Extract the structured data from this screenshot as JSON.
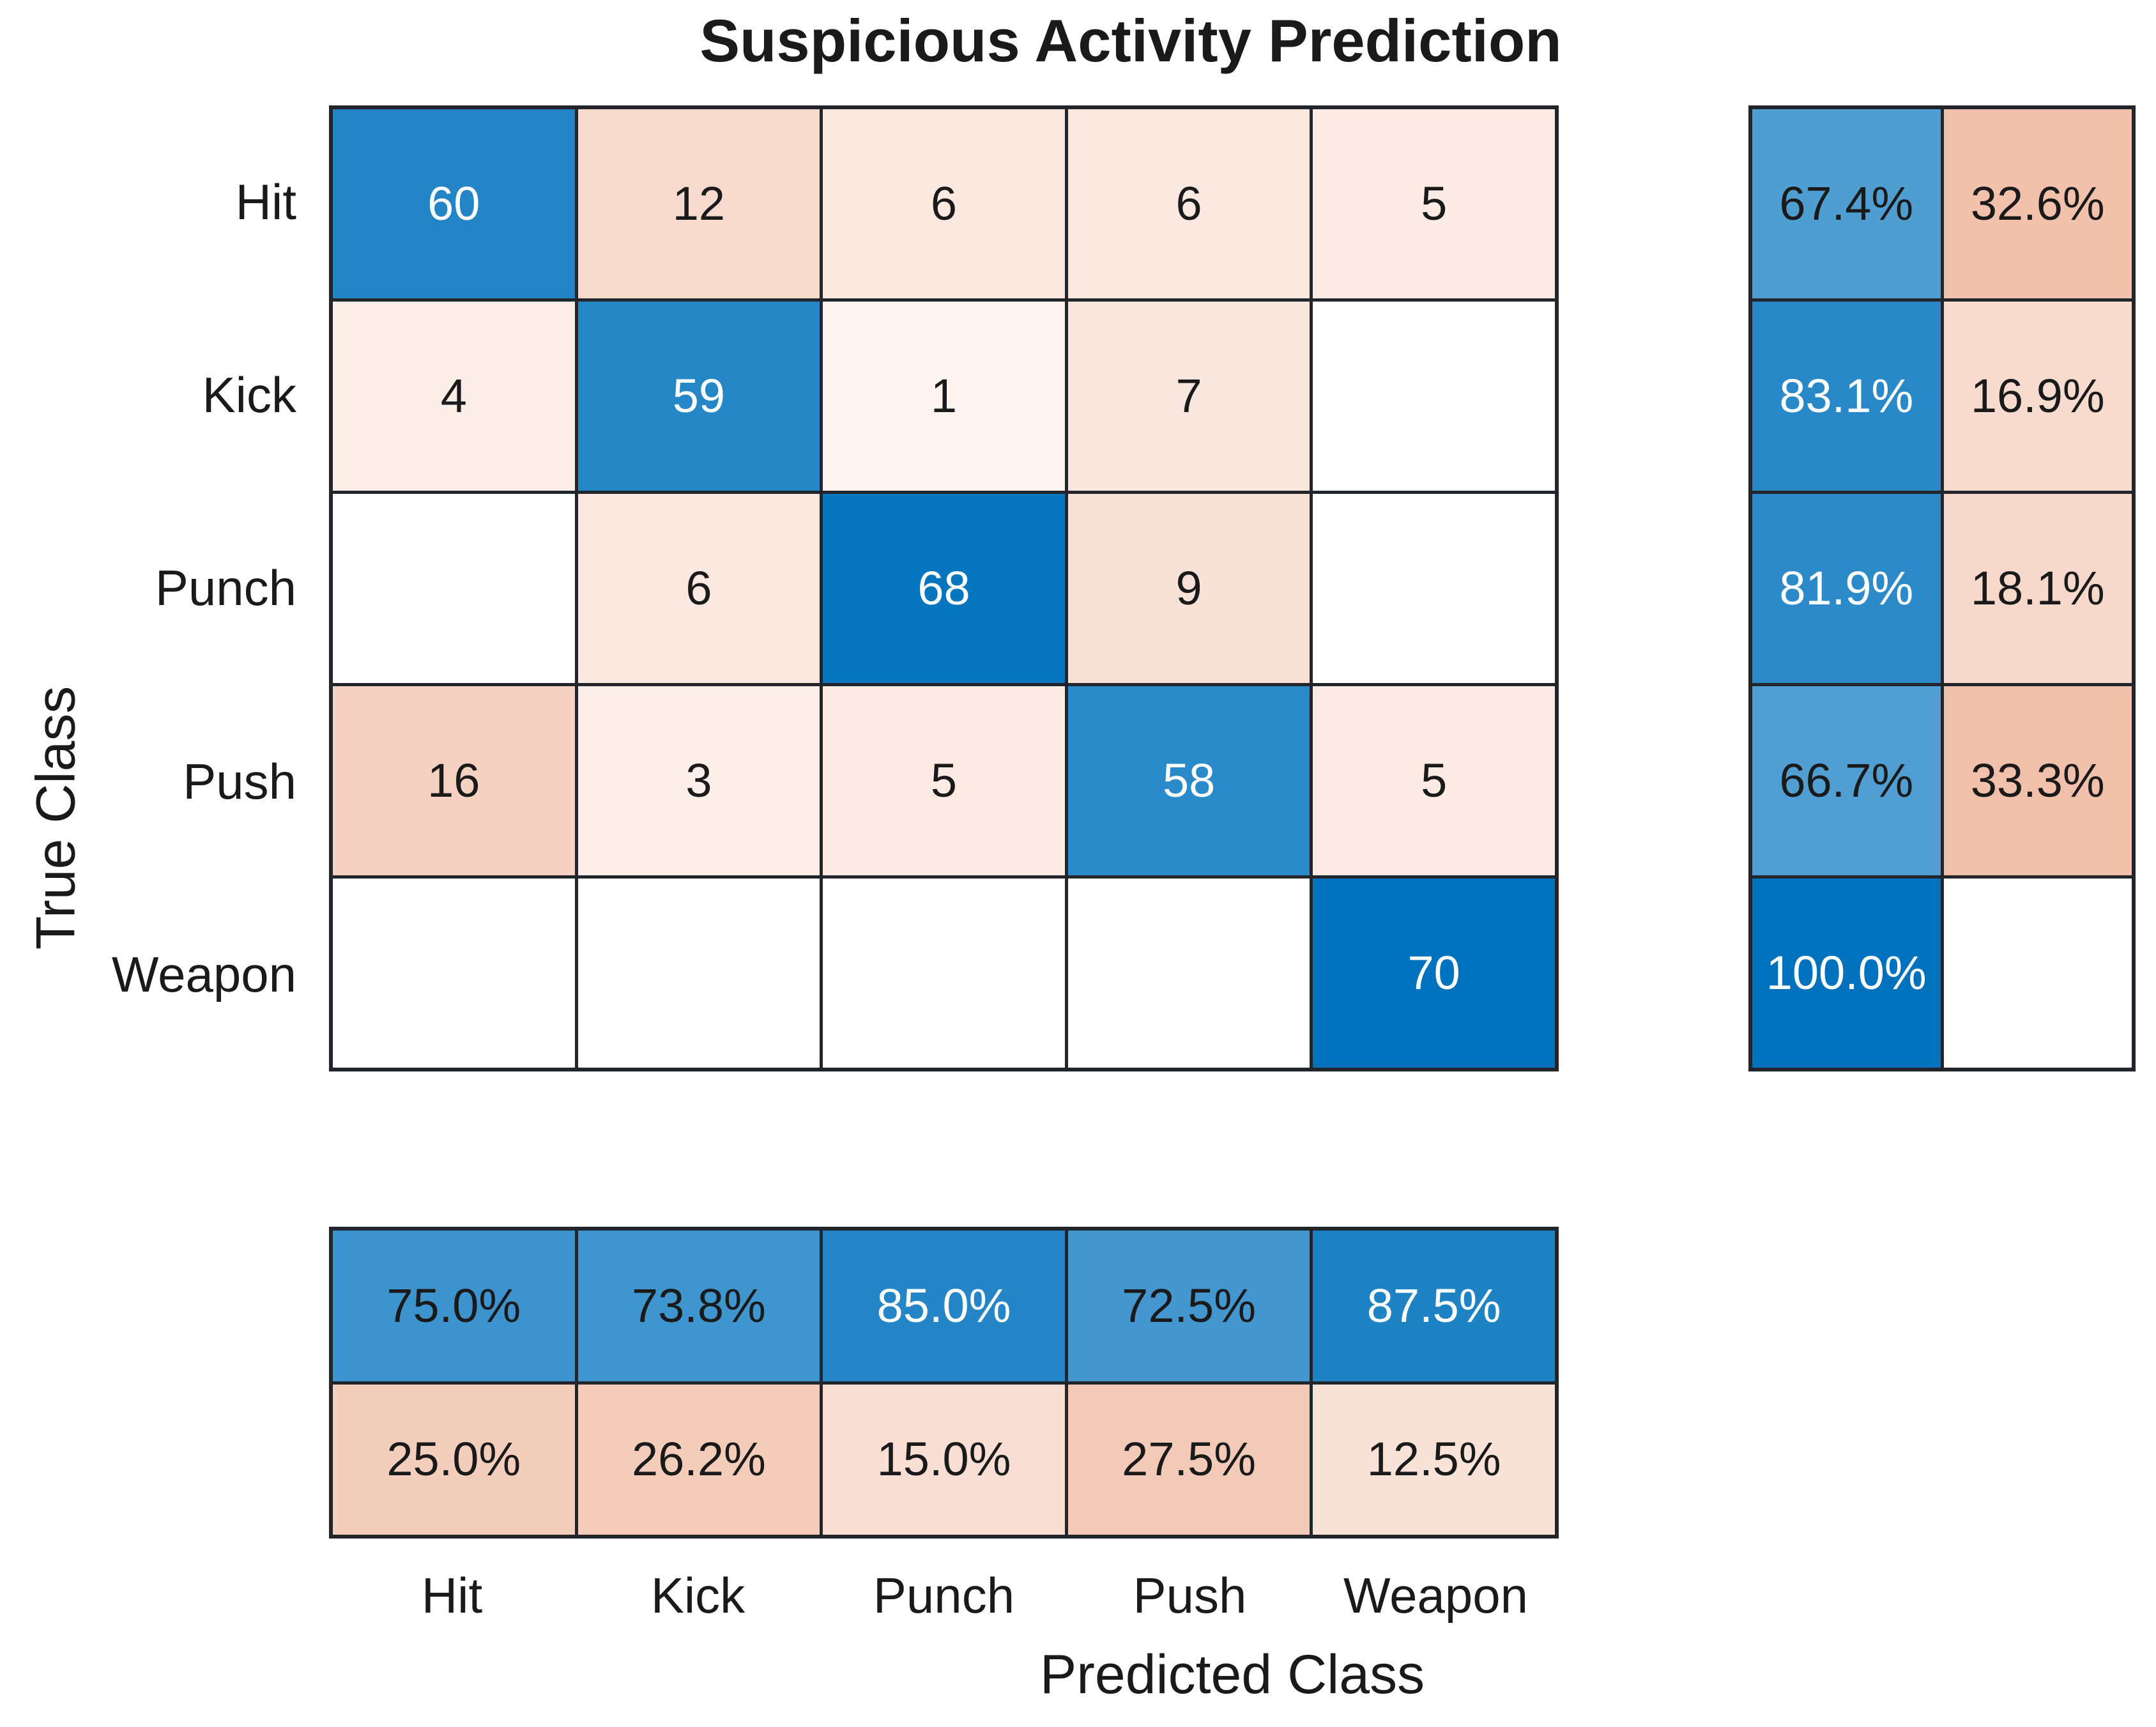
{
  "title": "Suspicious Activity Prediction",
  "x_axis_label": "Predicted Class",
  "y_axis_label": "True Class",
  "classes": [
    "Hit",
    "Kick",
    "Punch",
    "Push",
    "Weapon"
  ],
  "chart_data": {
    "type": "heatmap",
    "subtype": "confusion-matrix",
    "title": "Suspicious Activity Prediction",
    "xlabel": "Predicted Class",
    "ylabel": "True Class",
    "x_categories": [
      "Hit",
      "Kick",
      "Punch",
      "Push",
      "Weapon"
    ],
    "y_categories": [
      "Hit",
      "Kick",
      "Punch",
      "Push",
      "Weapon"
    ],
    "matrix_counts": [
      [
        60,
        12,
        6,
        6,
        5
      ],
      [
        4,
        59,
        1,
        7,
        0
      ],
      [
        0,
        6,
        68,
        9,
        0
      ],
      [
        16,
        3,
        5,
        58,
        5
      ],
      [
        0,
        0,
        0,
        0,
        70
      ]
    ],
    "max_count": 70,
    "row_summary_pct": [
      [
        67.4,
        32.6
      ],
      [
        83.1,
        16.9
      ],
      [
        81.9,
        18.1
      ],
      [
        66.7,
        33.3
      ],
      [
        100.0,
        null
      ]
    ],
    "row_summary_display": [
      [
        "67.4%",
        "32.6%"
      ],
      [
        "83.1%",
        "16.9%"
      ],
      [
        "81.9%",
        "18.1%"
      ],
      [
        "66.7%",
        "33.3%"
      ],
      [
        "100.0%",
        ""
      ]
    ],
    "col_summary_pct": [
      [
        75.0,
        25.0
      ],
      [
        73.8,
        26.2
      ],
      [
        85.0,
        15.0
      ],
      [
        72.5,
        27.5
      ],
      [
        87.5,
        12.5
      ]
    ],
    "col_summary_display": [
      [
        "75.0%",
        "25.0%"
      ],
      [
        "73.8%",
        "26.2%"
      ],
      [
        "85.0%",
        "15.0%"
      ],
      [
        "72.5%",
        "27.5%"
      ],
      [
        "87.5%",
        "12.5%"
      ]
    ],
    "legend": "none",
    "grid_visible": true
  },
  "colors": {
    "correct_base": "#0072BD",
    "incorrect_base": "#D95319",
    "empty_cell": "#FFFFFF",
    "grid_line": "#22262B",
    "text_dark": "#1A1A1A",
    "text_light": "#FFFFFF",
    "background": "#FFFFFF"
  }
}
